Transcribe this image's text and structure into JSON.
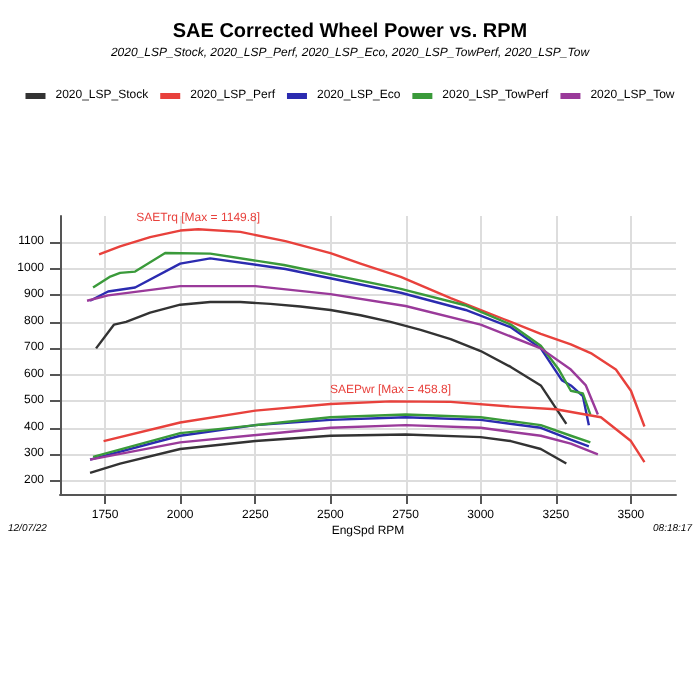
{
  "chart_data": {
    "type": "line",
    "title": "SAE Corrected Wheel Power vs. RPM",
    "subtitle": "2020_LSP_Stock, 2020_LSP_Perf, 2020_LSP_Eco, 2020_LSP_TowPerf, 2020_LSP_Tow",
    "xlabel": "EngSpd RPM",
    "annotations": [
      {
        "text": "SAETrq [Max = 1149.8]",
        "x": 2060,
        "y": 1150
      },
      {
        "text": "SAEPwr [Max = 458.8]",
        "x": 2700,
        "y": 500
      },
      "12/07/22",
      "08:18:17"
    ],
    "series": [
      {
        "name": "2020_LSP_Stock",
        "color": "#333333",
        "x": [
          1720,
          1780,
          1820,
          1900,
          2000,
          2100,
          2200,
          2300,
          2400,
          2500,
          2600,
          2700,
          2800,
          2900,
          3000,
          3100,
          3200,
          3285
        ],
        "values": [
          700,
          790,
          800,
          835,
          865,
          875,
          875,
          868,
          858,
          845,
          825,
          800,
          770,
          735,
          690,
          630,
          560,
          415
        ]
      },
      {
        "name": "2020_LSP_Perf",
        "color": "#e8413c",
        "x": [
          1730,
          1800,
          1900,
          2000,
          2060,
          2200,
          2350,
          2500,
          2600,
          2734,
          2900,
          3078,
          3200,
          3300,
          3370,
          3450,
          3500,
          3545
        ],
        "values": [
          1055,
          1085,
          1120,
          1145,
          1150,
          1140,
          1105,
          1060,
          1020,
          970,
          890,
          810,
          755,
          715,
          680,
          620,
          540,
          405
        ]
      },
      {
        "name": "2020_LSP_Eco",
        "color": "#2b2bb0",
        "x": [
          1700,
          1760,
          1850,
          2000,
          2100,
          2350,
          2734,
          2950,
          3100,
          3200,
          3270,
          3300,
          3340,
          3360
        ],
        "values": [
          880,
          915,
          930,
          1020,
          1040,
          1000,
          910,
          845,
          780,
          700,
          580,
          560,
          520,
          410
        ]
      },
      {
        "name": "2020_LSP_TowPerf",
        "color": "#3a9a3a",
        "x": [
          1710,
          1765,
          1800,
          1850,
          1950,
          2100,
          2345,
          2734,
          2948,
          3100,
          3200,
          3260,
          3300,
          3340,
          3365
        ],
        "values": [
          930,
          970,
          985,
          990,
          1060,
          1058,
          1015,
          925,
          863,
          790,
          710,
          620,
          540,
          530,
          450
        ]
      },
      {
        "name": "2020_LSP_Tow",
        "color": "#9a3a9a",
        "x": [
          1690,
          1760,
          2000,
          2250,
          2500,
          2750,
          3000,
          3200,
          3300,
          3350,
          3390
        ],
        "values": [
          880,
          900,
          935,
          935,
          905,
          860,
          790,
          700,
          620,
          560,
          450
        ]
      },
      {
        "color": "#333333",
        "x": [
          1700,
          1800,
          2000,
          2250,
          2500,
          2750,
          3000,
          3100,
          3200,
          3285
        ],
        "values": [
          230,
          265,
          320,
          350,
          370,
          375,
          365,
          350,
          320,
          265
        ]
      },
      {
        "color": "#e8413c",
        "x": [
          1745,
          2000,
          2250,
          2500,
          2700,
          2900,
          3100,
          3250,
          3400,
          3500,
          3545
        ],
        "values": [
          350,
          420,
          465,
          490,
          500,
          498,
          480,
          470,
          440,
          350,
          270
        ]
      },
      {
        "color": "#2b2bb0",
        "x": [
          1700,
          2000,
          2250,
          2500,
          2750,
          3000,
          3200,
          3300,
          3360
        ],
        "values": [
          280,
          370,
          410,
          430,
          440,
          430,
          400,
          355,
          330
        ]
      },
      {
        "color": "#3a9a3a",
        "x": [
          1710,
          2000,
          2500,
          2750,
          3000,
          3200,
          3300,
          3365
        ],
        "values": [
          290,
          380,
          440,
          450,
          440,
          410,
          370,
          345
        ]
      },
      {
        "color": "#9a3a9a",
        "x": [
          1700,
          2000,
          2500,
          2750,
          3000,
          3200,
          3300,
          3390
        ],
        "values": [
          280,
          345,
          400,
          410,
          400,
          370,
          340,
          300
        ]
      }
    ],
    "xlim": [
      1600,
      3650
    ],
    "xticks": [
      1750,
      2000,
      2250,
      2500,
      2750,
      3000,
      3250,
      3500
    ],
    "ylim": [
      150,
      1200
    ],
    "yticks": [
      200,
      300,
      400,
      500,
      600,
      700,
      800,
      900,
      1000,
      1100
    ],
    "grid": true,
    "legend": "top",
    "marker": "none",
    "line_style": "solid"
  }
}
